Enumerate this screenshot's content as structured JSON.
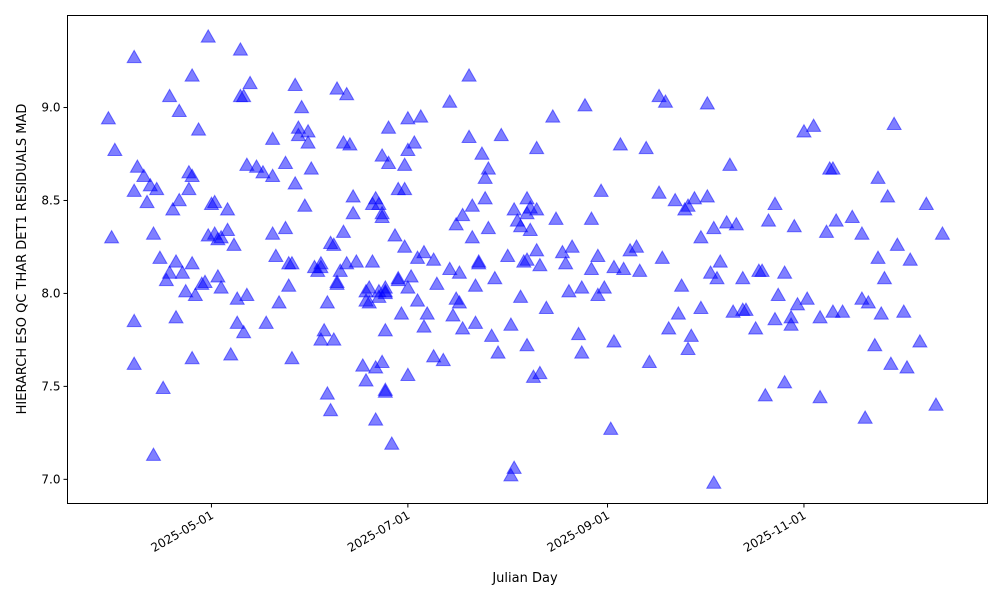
{
  "chart_data": {
    "type": "scatter",
    "title": "",
    "xlabel": "Julian Day",
    "ylabel": "HIERARCH ESO QC THAR DET1 RESIDUALS MAD",
    "x_unit": "days since x_epoch",
    "x_epoch": "2025-05-01",
    "xlim": [
      -44.7,
      241
    ],
    "ylim": [
      6.87,
      9.495
    ],
    "xticks": [
      {
        "label": "2025-05-01",
        "value": 0
      },
      {
        "label": "2025-07-01",
        "value": 61
      },
      {
        "label": "2025-09-01",
        "value": 123
      },
      {
        "label": "2025-11-01",
        "value": 184
      }
    ],
    "yticks": [
      {
        "label": "7.0",
        "value": 7.0
      },
      {
        "label": "7.5",
        "value": 7.5
      },
      {
        "label": "8.0",
        "value": 8.0
      },
      {
        "label": "8.5",
        "value": 8.5
      },
      {
        "label": "9.0",
        "value": 9.0
      }
    ],
    "grid": false,
    "marker": "triangle-up",
    "color": "#0000ff",
    "alpha": 0.5,
    "points": [
      [
        -32,
        8.94
      ],
      [
        -31,
        8.3
      ],
      [
        -30,
        8.77
      ],
      [
        -24,
        9.27
      ],
      [
        -24,
        8.55
      ],
      [
        -24,
        7.62
      ],
      [
        -24,
        7.85
      ],
      [
        -23,
        8.68
      ],
      [
        -21,
        8.63
      ],
      [
        -20,
        8.49
      ],
      [
        -19,
        8.58
      ],
      [
        -18,
        8.32
      ],
      [
        -18,
        7.13
      ],
      [
        -17,
        8.56
      ],
      [
        -16,
        8.19
      ],
      [
        -15,
        7.49
      ],
      [
        -14,
        8.07
      ],
      [
        -13,
        9.06
      ],
      [
        -13,
        8.11
      ],
      [
        -12,
        8.45
      ],
      [
        -11,
        7.87
      ],
      [
        -11,
        8.17
      ],
      [
        -10,
        8.98
      ],
      [
        -10,
        8.5
      ],
      [
        -9,
        8.11
      ],
      [
        -8,
        8.01
      ],
      [
        -7,
        8.65
      ],
      [
        -7,
        8.56
      ],
      [
        -6,
        9.17
      ],
      [
        -6,
        8.63
      ],
      [
        -6,
        7.65
      ],
      [
        -6,
        8.16
      ],
      [
        -5,
        7.99
      ],
      [
        -4,
        8.88
      ],
      [
        -3,
        8.05
      ],
      [
        -2,
        8.06
      ],
      [
        -1,
        8.31
      ],
      [
        -1,
        9.38
      ],
      [
        0,
        8.48
      ],
      [
        1,
        8.49
      ],
      [
        1,
        8.32
      ],
      [
        2,
        8.09
      ],
      [
        2,
        8.29
      ],
      [
        3,
        8.03
      ],
      [
        3,
        8.3
      ],
      [
        5,
        8.45
      ],
      [
        5,
        8.34
      ],
      [
        6,
        7.67
      ],
      [
        7,
        8.26
      ],
      [
        8,
        7.97
      ],
      [
        8,
        7.84
      ],
      [
        9,
        9.31
      ],
      [
        9,
        9.06
      ],
      [
        10,
        9.06
      ],
      [
        10,
        7.79
      ],
      [
        11,
        7.99
      ],
      [
        11,
        8.69
      ],
      [
        12,
        9.13
      ],
      [
        14,
        8.68
      ],
      [
        16,
        8.65
      ],
      [
        17,
        7.84
      ],
      [
        19,
        8.63
      ],
      [
        19,
        8.83
      ],
      [
        19,
        8.32
      ],
      [
        20,
        8.2
      ],
      [
        21,
        7.95
      ],
      [
        23,
        8.35
      ],
      [
        23,
        8.7
      ],
      [
        24,
        8.16
      ],
      [
        25,
        8.16
      ],
      [
        24,
        8.04
      ],
      [
        25,
        7.65
      ],
      [
        26,
        9.12
      ],
      [
        26,
        8.59
      ],
      [
        27,
        8.89
      ],
      [
        27,
        8.85
      ],
      [
        28,
        9.0
      ],
      [
        29,
        8.47
      ],
      [
        30,
        8.87
      ],
      [
        30,
        8.81
      ],
      [
        31,
        8.67
      ],
      [
        32,
        8.14
      ],
      [
        33,
        8.12
      ],
      [
        34,
        7.75
      ],
      [
        34,
        8.14
      ],
      [
        34,
        8.16
      ],
      [
        35,
        7.8
      ],
      [
        36,
        7.95
      ],
      [
        36,
        7.46
      ],
      [
        37,
        8.27
      ],
      [
        37,
        7.37
      ],
      [
        38,
        8.26
      ],
      [
        38,
        7.75
      ],
      [
        39,
        9.1
      ],
      [
        39,
        8.05
      ],
      [
        39,
        8.06
      ],
      [
        40,
        8.12
      ],
      [
        41,
        8.33
      ],
      [
        41,
        8.81
      ],
      [
        42,
        9.07
      ],
      [
        42,
        8.16
      ],
      [
        43,
        8.8
      ],
      [
        44,
        8.43
      ],
      [
        44,
        8.52
      ],
      [
        45,
        8.17
      ],
      [
        47,
        7.61
      ],
      [
        48,
        8.01
      ],
      [
        48,
        7.96
      ],
      [
        48,
        7.53
      ],
      [
        49,
        8.03
      ],
      [
        49,
        7.95
      ],
      [
        50,
        8.17
      ],
      [
        50,
        8.48
      ],
      [
        51,
        8.51
      ],
      [
        51,
        7.32
      ],
      [
        52,
        8.48
      ],
      [
        51,
        7.6
      ],
      [
        52,
        8.01
      ],
      [
        52,
        7.98
      ],
      [
        53,
        8.41
      ],
      [
        53,
        8.43
      ],
      [
        53,
        7.63
      ],
      [
        53,
        8.74
      ],
      [
        54,
        8.0
      ],
      [
        54,
        7.8
      ],
      [
        54,
        8.03
      ],
      [
        54,
        8.01
      ],
      [
        54,
        7.48
      ],
      [
        54,
        7.47
      ],
      [
        55,
        8.89
      ],
      [
        55,
        8.7
      ],
      [
        56,
        7.19
      ],
      [
        57,
        8.31
      ],
      [
        58,
        8.08
      ],
      [
        58,
        8.07
      ],
      [
        58,
        8.56
      ],
      [
        59,
        7.89
      ],
      [
        60,
        8.56
      ],
      [
        60,
        8.69
      ],
      [
        60,
        8.25
      ],
      [
        61,
        8.77
      ],
      [
        61,
        8.94
      ],
      [
        61,
        8.03
      ],
      [
        61,
        7.56
      ],
      [
        62,
        8.09
      ],
      [
        63,
        8.81
      ],
      [
        64,
        8.19
      ],
      [
        64,
        7.96
      ],
      [
        65,
        8.95
      ],
      [
        66,
        8.22
      ],
      [
        66,
        7.82
      ],
      [
        67,
        7.89
      ],
      [
        69,
        7.66
      ],
      [
        69,
        8.18
      ],
      [
        70,
        8.05
      ],
      [
        72,
        7.64
      ],
      [
        74,
        9.03
      ],
      [
        74,
        8.13
      ],
      [
        75,
        7.88
      ],
      [
        76,
        7.97
      ],
      [
        76,
        8.37
      ],
      [
        77,
        7.95
      ],
      [
        77,
        8.11
      ],
      [
        78,
        8.42
      ],
      [
        78,
        7.81
      ],
      [
        80,
        9.17
      ],
      [
        80,
        8.84
      ],
      [
        81,
        8.47
      ],
      [
        81,
        8.3
      ],
      [
        82,
        7.84
      ],
      [
        82,
        8.04
      ],
      [
        83,
        8.17
      ],
      [
        83,
        8.16
      ],
      [
        84,
        8.75
      ],
      [
        85,
        8.62
      ],
      [
        85,
        8.51
      ],
      [
        86,
        8.35
      ],
      [
        86,
        8.67
      ],
      [
        87,
        7.77
      ],
      [
        88,
        8.08
      ],
      [
        89,
        7.68
      ],
      [
        90,
        8.85
      ],
      [
        92,
        8.2
      ],
      [
        93,
        7.83
      ],
      [
        93,
        7.02
      ],
      [
        94,
        7.06
      ],
      [
        94,
        8.45
      ],
      [
        95,
        8.39
      ],
      [
        96,
        7.98
      ],
      [
        96,
        8.36
      ],
      [
        97,
        8.17
      ],
      [
        98,
        8.51
      ],
      [
        98,
        8.18
      ],
      [
        98,
        7.72
      ],
      [
        98,
        8.43
      ],
      [
        99,
        8.46
      ],
      [
        99,
        8.34
      ],
      [
        100,
        7.55
      ],
      [
        101,
        8.78
      ],
      [
        101,
        8.45
      ],
      [
        101,
        8.23
      ],
      [
        102,
        7.57
      ],
      [
        102,
        8.15
      ],
      [
        104,
        7.92
      ],
      [
        106,
        8.95
      ],
      [
        107,
        8.4
      ],
      [
        109,
        8.22
      ],
      [
        110,
        8.16
      ],
      [
        111,
        8.01
      ],
      [
        112,
        8.25
      ],
      [
        114,
        7.78
      ],
      [
        115,
        7.68
      ],
      [
        115,
        8.03
      ],
      [
        116,
        9.01
      ],
      [
        118,
        8.13
      ],
      [
        118,
        8.4
      ],
      [
        120,
        7.99
      ],
      [
        120,
        8.2
      ],
      [
        121,
        8.55
      ],
      [
        122,
        8.03
      ],
      [
        124,
        7.27
      ],
      [
        125,
        8.14
      ],
      [
        125,
        7.74
      ],
      [
        127,
        8.8
      ],
      [
        128,
        8.13
      ],
      [
        130,
        8.23
      ],
      [
        132,
        8.25
      ],
      [
        133,
        8.12
      ],
      [
        135,
        8.78
      ],
      [
        136,
        7.63
      ],
      [
        139,
        8.54
      ],
      [
        139,
        9.06
      ],
      [
        140,
        8.19
      ],
      [
        141,
        9.03
      ],
      [
        142,
        7.81
      ],
      [
        144,
        8.5
      ],
      [
        145,
        7.89
      ],
      [
        146,
        8.04
      ],
      [
        147,
        8.45
      ],
      [
        148,
        7.7
      ],
      [
        148,
        8.47
      ],
      [
        149,
        7.77
      ],
      [
        150,
        8.51
      ],
      [
        152,
        7.92
      ],
      [
        152,
        8.3
      ],
      [
        154,
        8.52
      ],
      [
        154,
        9.02
      ],
      [
        155,
        8.11
      ],
      [
        156,
        8.35
      ],
      [
        156,
        6.98
      ],
      [
        157,
        8.08
      ],
      [
        158,
        8.17
      ],
      [
        160,
        8.38
      ],
      [
        161,
        8.69
      ],
      [
        162,
        7.9
      ],
      [
        163,
        8.37
      ],
      [
        165,
        8.08
      ],
      [
        165,
        7.91
      ],
      [
        166,
        7.91
      ],
      [
        169,
        7.81
      ],
      [
        170,
        8.12
      ],
      [
        171,
        8.12
      ],
      [
        172,
        7.45
      ],
      [
        173,
        8.39
      ],
      [
        175,
        7.86
      ],
      [
        175,
        8.48
      ],
      [
        176,
        7.99
      ],
      [
        178,
        8.11
      ],
      [
        178,
        7.52
      ],
      [
        180,
        7.83
      ],
      [
        180,
        7.87
      ],
      [
        181,
        8.36
      ],
      [
        182,
        7.94
      ],
      [
        184,
        8.87
      ],
      [
        185,
        7.97
      ],
      [
        187,
        8.9
      ],
      [
        189,
        7.87
      ],
      [
        189,
        7.44
      ],
      [
        191,
        8.33
      ],
      [
        192,
        8.67
      ],
      [
        193,
        7.9
      ],
      [
        193,
        8.67
      ],
      [
        194,
        8.39
      ],
      [
        196,
        7.9
      ],
      [
        199,
        8.41
      ],
      [
        202,
        7.97
      ],
      [
        202,
        8.32
      ],
      [
        203,
        7.33
      ],
      [
        204,
        7.95
      ],
      [
        206,
        7.72
      ],
      [
        207,
        8.62
      ],
      [
        207,
        8.19
      ],
      [
        208,
        7.89
      ],
      [
        209,
        8.08
      ],
      [
        210,
        8.52
      ],
      [
        211,
        7.62
      ],
      [
        212,
        8.91
      ],
      [
        213,
        8.26
      ],
      [
        215,
        7.9
      ],
      [
        216,
        7.6
      ],
      [
        217,
        8.18
      ],
      [
        220,
        7.74
      ],
      [
        222,
        8.48
      ],
      [
        225,
        7.4
      ],
      [
        227,
        8.32
      ]
    ]
  }
}
